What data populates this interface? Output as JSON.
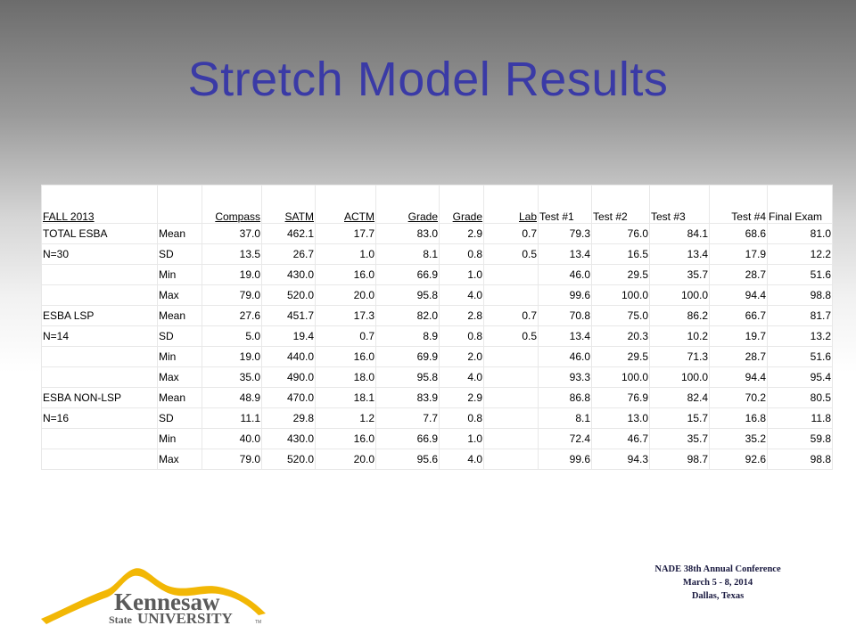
{
  "slide": {
    "title": "Stretch Model Results"
  },
  "table": {
    "headers": [
      "FALL 2013",
      "",
      "Compass",
      "SATM",
      "ACTM",
      "Grade",
      "Grade",
      "Lab",
      "Test #1",
      "Test #2",
      "Test #3",
      "Test #4",
      "Final Exam"
    ],
    "rows": [
      [
        "TOTAL ESBA",
        "Mean",
        "37.0",
        "462.1",
        "17.7",
        "83.0",
        "2.9",
        "0.7",
        "79.3",
        "76.0",
        "84.1",
        "68.6",
        "81.0"
      ],
      [
        "N=30",
        "SD",
        "13.5",
        "26.7",
        "1.0",
        "8.1",
        "0.8",
        "0.5",
        "13.4",
        "16.5",
        "13.4",
        "17.9",
        "12.2"
      ],
      [
        "",
        "Min",
        "19.0",
        "430.0",
        "16.0",
        "66.9",
        "1.0",
        "",
        "46.0",
        "29.5",
        "35.7",
        "28.7",
        "51.6"
      ],
      [
        "",
        "Max",
        "79.0",
        "520.0",
        "20.0",
        "95.8",
        "4.0",
        "",
        "99.6",
        "100.0",
        "100.0",
        "94.4",
        "98.8"
      ],
      [
        "ESBA LSP",
        "Mean",
        "27.6",
        "451.7",
        "17.3",
        "82.0",
        "2.8",
        "0.7",
        "70.8",
        "75.0",
        "86.2",
        "66.7",
        "81.7"
      ],
      [
        "N=14",
        "SD",
        "5.0",
        "19.4",
        "0.7",
        "8.9",
        "0.8",
        "0.5",
        "13.4",
        "20.3",
        "10.2",
        "19.7",
        "13.2"
      ],
      [
        "",
        "Min",
        "19.0",
        "440.0",
        "16.0",
        "69.9",
        "2.0",
        "",
        "46.0",
        "29.5",
        "71.3",
        "28.7",
        "51.6"
      ],
      [
        "",
        "Max",
        "35.0",
        "490.0",
        "18.0",
        "95.8",
        "4.0",
        "",
        "93.3",
        "100.0",
        "100.0",
        "94.4",
        "95.4"
      ],
      [
        "ESBA NON-LSP",
        "Mean",
        "48.9",
        "470.0",
        "18.1",
        "83.9",
        "2.9",
        "",
        "86.8",
        "76.9",
        "82.4",
        "70.2",
        "80.5"
      ],
      [
        "N=16",
        "SD",
        "11.1",
        "29.8",
        "1.2",
        "7.7",
        "0.8",
        "",
        "8.1",
        "13.0",
        "15.7",
        "16.8",
        "11.8"
      ],
      [
        "",
        "Min",
        "40.0",
        "430.0",
        "16.0",
        "66.9",
        "1.0",
        "",
        "72.4",
        "46.7",
        "35.7",
        "35.2",
        "59.8"
      ],
      [
        "",
        "Max",
        "79.0",
        "520.0",
        "20.0",
        "95.6",
        "4.0",
        "",
        "99.6",
        "94.3",
        "98.7",
        "92.6",
        "98.8"
      ]
    ]
  },
  "footer": {
    "logo_text_main": "Kennesaw",
    "logo_text_state": "State",
    "logo_text_university": "UNIVERSITY",
    "logo_tm": "TM",
    "conference_lines": [
      "NADE 38th Annual Conference",
      "March  5 - 8, 2014",
      "Dallas, Texas"
    ]
  },
  "colors": {
    "title": "#3a3aa6",
    "logo_gold": "#f2b705",
    "logo_gray": "#5a5a5a"
  }
}
